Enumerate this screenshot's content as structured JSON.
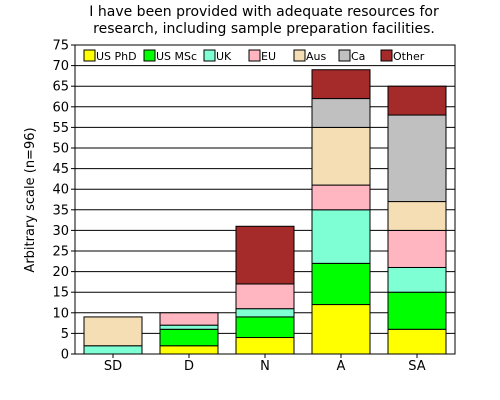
{
  "chart_data": {
    "type": "bar",
    "stacked": true,
    "title_lines": [
      "I have been provided with adequate resources for",
      "research, including sample preparation facilities."
    ],
    "xlabel": "",
    "ylabel": "Arbitrary scale (n=96)",
    "ylim": [
      0,
      75
    ],
    "yticks": [
      0,
      5,
      10,
      15,
      20,
      25,
      30,
      35,
      40,
      45,
      50,
      55,
      60,
      65,
      70,
      75
    ],
    "grid": true,
    "legend_position": "top",
    "categories": [
      "SD",
      "D",
      "N",
      "A",
      "SA"
    ],
    "series": [
      {
        "name": "US PhD",
        "color": "#ffff00",
        "values": [
          0,
          2,
          4,
          12,
          6
        ]
      },
      {
        "name": "US MSc",
        "color": "#00ff00",
        "values": [
          0,
          4,
          5,
          10,
          9
        ]
      },
      {
        "name": "UK",
        "color": "#7fffd4",
        "values": [
          2,
          1,
          2,
          13,
          6
        ]
      },
      {
        "name": "EU",
        "color": "#ffb6c1",
        "values": [
          0,
          3,
          6,
          6,
          9
        ]
      },
      {
        "name": "Aus",
        "color": "#f5deb3",
        "values": [
          7,
          0,
          0,
          14,
          7
        ]
      },
      {
        "name": "Ca",
        "color": "#c0c0c0",
        "values": [
          0,
          0,
          0,
          7,
          21
        ]
      },
      {
        "name": "Other",
        "color": "#a52a2a",
        "values": [
          0,
          0,
          14,
          7,
          7
        ]
      }
    ]
  }
}
